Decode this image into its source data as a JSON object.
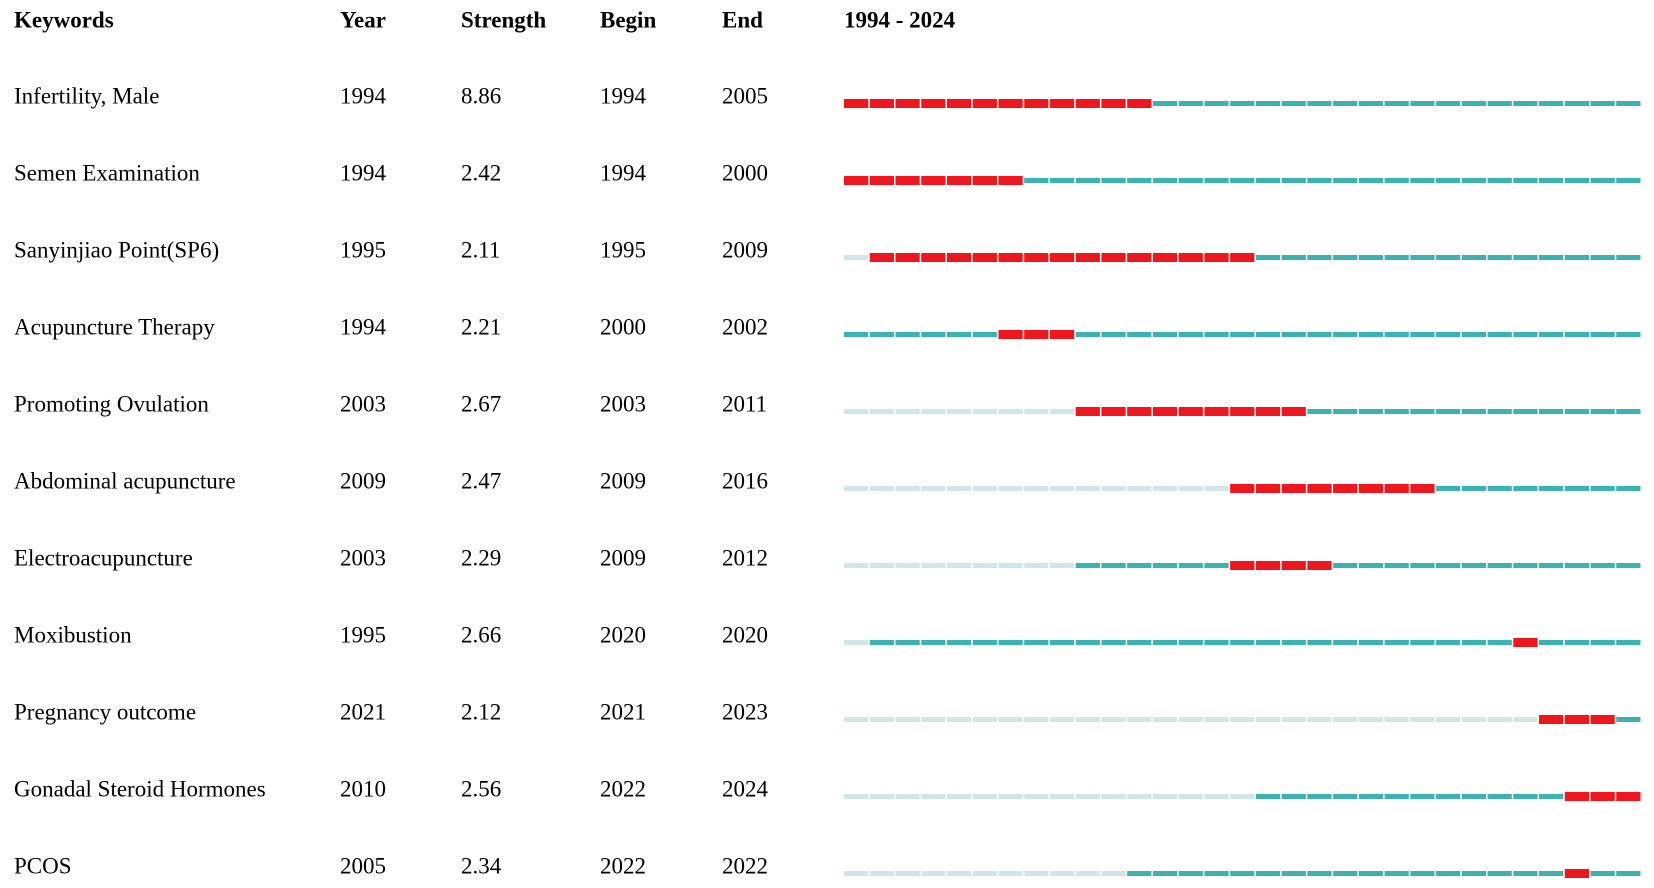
{
  "header": {
    "keyword": "Keywords",
    "year": "Year",
    "strength": "Strength",
    "begin": "Begin",
    "end": "End",
    "timeline": "1994 - 2024"
  },
  "timeline_range": [
    1994,
    2024
  ],
  "colors": {
    "before": "#cfe7e9",
    "active": "#3bb3b5",
    "burst": "#f0161d"
  },
  "rows": [
    {
      "keyword": "Infertility, Male",
      "year": 1994,
      "strength": 8.86,
      "begin": 1994,
      "end": 2005
    },
    {
      "keyword": "Semen Examination",
      "year": 1994,
      "strength": 2.42,
      "begin": 1994,
      "end": 2000
    },
    {
      "keyword": "Sanyinjiao Point(SP6)",
      "year": 1995,
      "strength": 2.11,
      "begin": 1995,
      "end": 2009
    },
    {
      "keyword": "Acupuncture Therapy",
      "year": 1994,
      "strength": 2.21,
      "begin": 2000,
      "end": 2002
    },
    {
      "keyword": "Promoting Ovulation",
      "year": 2003,
      "strength": 2.67,
      "begin": 2003,
      "end": 2011
    },
    {
      "keyword": "Abdominal acupuncture",
      "year": 2009,
      "strength": 2.47,
      "begin": 2009,
      "end": 2016
    },
    {
      "keyword": "Electroacupuncture",
      "year": 2003,
      "strength": 2.29,
      "begin": 2009,
      "end": 2012
    },
    {
      "keyword": "Moxibustion",
      "year": 1995,
      "strength": 2.66,
      "begin": 2020,
      "end": 2020
    },
    {
      "keyword": "Pregnancy outcome",
      "year": 2021,
      "strength": 2.12,
      "begin": 2021,
      "end": 2023
    },
    {
      "keyword": "Gonadal Steroid Hormones",
      "year": 2010,
      "strength": 2.56,
      "begin": 2022,
      "end": 2024
    },
    {
      "keyword": "PCOS",
      "year": 2005,
      "strength": 2.34,
      "begin": 2022,
      "end": 2022
    }
  ]
}
